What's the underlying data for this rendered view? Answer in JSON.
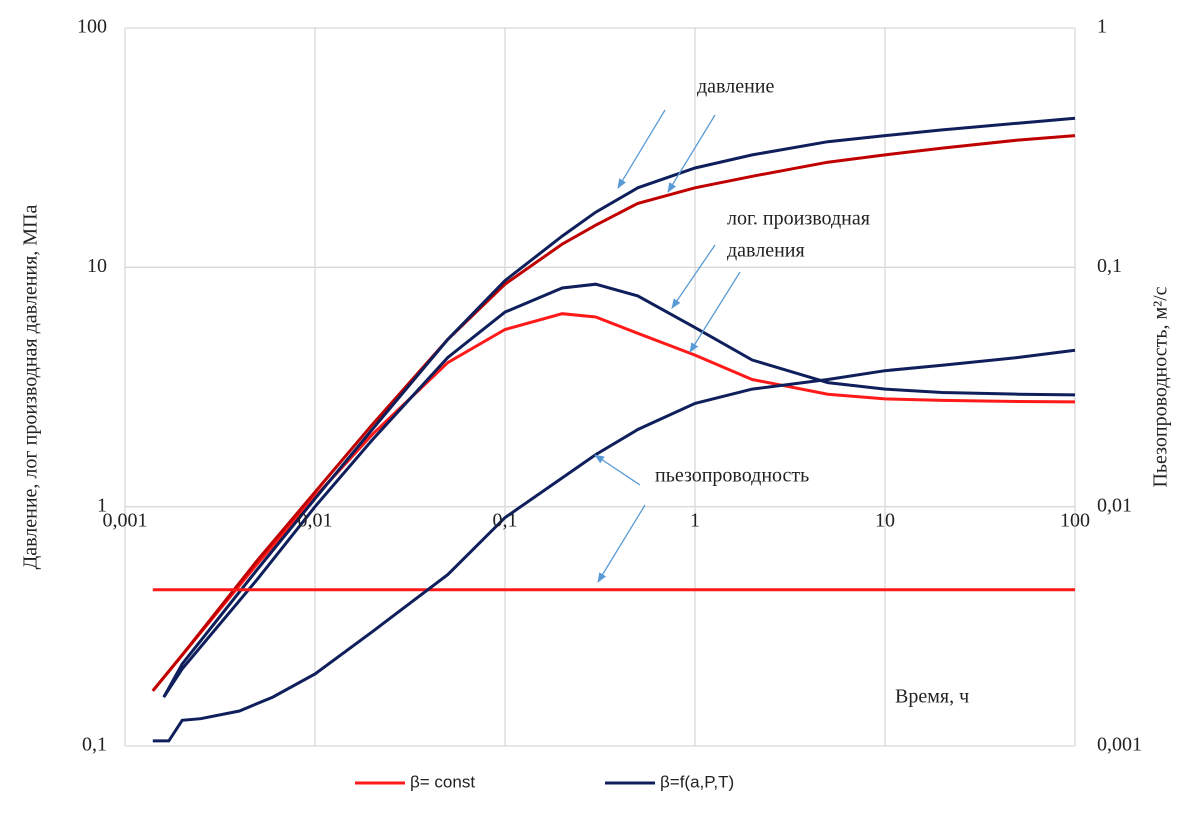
{
  "chart_data": {
    "type": "line",
    "log_x": true,
    "log_y": true,
    "grid": true,
    "y_label": "Давление, лог производная давления, МПа",
    "y2_label": "Пьезопроводность, м²/с",
    "annotations": [
      "давление",
      "лог. производная",
      "давления",
      "пьезопроводность",
      "Время, ч"
    ],
    "xlim": [
      0.001,
      100
    ],
    "xticks": [
      {
        "value": 0.001,
        "label": "0,001"
      },
      {
        "value": 0.01,
        "label": "0,01"
      },
      {
        "value": 0.1,
        "label": "0,1"
      },
      1,
      10,
      100
    ],
    "ylim": [
      0.1,
      100
    ],
    "yticks": [
      {
        "value": 0.1,
        "label": "0,1"
      },
      1,
      10,
      100
    ],
    "y2lim": [
      0.001,
      1
    ],
    "y2ticks": [
      {
        "value": 0.001,
        "label": "0,001"
      },
      {
        "value": 0.01,
        "label": "0,01"
      },
      {
        "value": 0.1,
        "label": "0,1"
      },
      1
    ],
    "legend": "bottom",
    "series": [
      {
        "name": "β= const",
        "color": "#ff1a1a",
        "x": [
          0.0014,
          0.002,
          0.005,
          0.01,
          0.02,
          0.05,
          0.1,
          0.2,
          0.3,
          0.5,
          1,
          2,
          5,
          10,
          20,
          50,
          100
        ],
        "values": [
          0.17,
          0.24,
          0.58,
          1.1,
          2.0,
          4.0,
          5.5,
          6.4,
          6.2,
          5.3,
          4.3,
          3.4,
          2.95,
          2.82,
          2.78,
          2.75,
          2.74
        ]
      },
      {
        "name": "β=f(a,P,T)",
        "color": "#0f1f5c",
        "x": [
          0.0016,
          0.002,
          0.005,
          0.01,
          0.02,
          0.05,
          0.1,
          0.2,
          0.3,
          0.5,
          1,
          2,
          5,
          10,
          20,
          50,
          100
        ],
        "values": [
          0.16,
          0.21,
          0.5,
          1.0,
          1.9,
          4.2,
          6.5,
          8.2,
          8.5,
          7.6,
          5.6,
          4.1,
          3.3,
          3.1,
          3.0,
          2.95,
          2.93
        ]
      },
      {
        "name": "β= const",
        "color": "#c00000",
        "x": [
          0.0014,
          0.002,
          0.005,
          0.01,
          0.02,
          0.05,
          0.1,
          0.2,
          0.3,
          0.5,
          1,
          2,
          5,
          10,
          20,
          50,
          100
        ],
        "values": [
          0.17,
          0.24,
          0.6,
          1.15,
          2.2,
          5.0,
          8.5,
          12.5,
          15,
          18.5,
          21.5,
          24,
          27.5,
          29.5,
          31.5,
          34,
          35.5
        ]
      },
      {
        "name": "β=f(a,P,T)",
        "color": "#0f1f5c",
        "x": [
          0.0016,
          0.002,
          0.005,
          0.01,
          0.02,
          0.05,
          0.1,
          0.2,
          0.3,
          0.5,
          1,
          2,
          5,
          10,
          20,
          50,
          100
        ],
        "values": [
          0.16,
          0.22,
          0.55,
          1.08,
          2.1,
          5.0,
          8.8,
          13.5,
          17,
          21.5,
          26,
          29.5,
          33.5,
          35.5,
          37.5,
          40,
          42
        ]
      },
      {
        "name": "β= const",
        "color": "#ff1a1a",
        "axis": "y2",
        "x": [
          0.0014,
          100
        ],
        "values": [
          0.0045,
          0.0045
        ]
      },
      {
        "name": "β=f(a,P,T)",
        "color": "#0f1f5c",
        "axis": "y2",
        "x": [
          0.0014,
          0.0017,
          0.002,
          0.0025,
          0.004,
          0.006,
          0.01,
          0.02,
          0.05,
          0.1,
          0.3,
          0.5,
          1,
          2,
          5,
          10,
          20,
          50,
          100
        ],
        "values": [
          0.00105,
          0.00105,
          0.00128,
          0.0013,
          0.0014,
          0.0016,
          0.002,
          0.003,
          0.0052,
          0.009,
          0.0165,
          0.021,
          0.027,
          0.031,
          0.034,
          0.037,
          0.039,
          0.042,
          0.045
        ]
      }
    ]
  }
}
